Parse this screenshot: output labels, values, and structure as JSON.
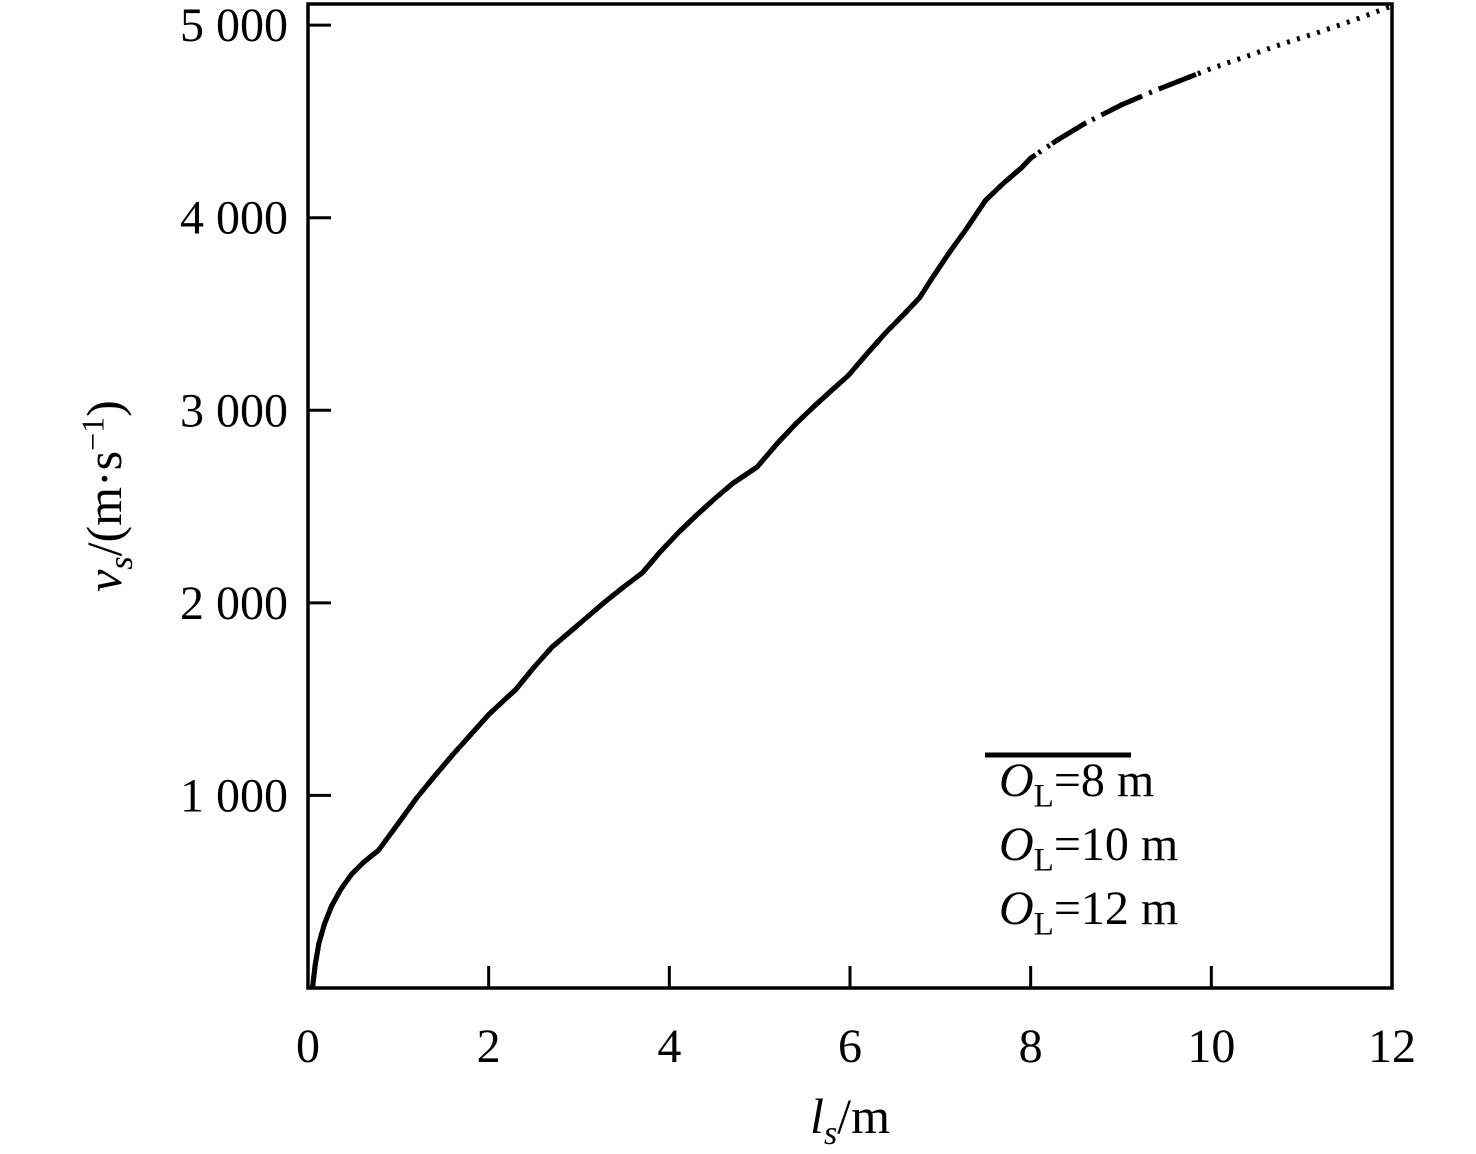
{
  "figure": {
    "background": "#ffffff",
    "ink_color": "#000000",
    "title": ""
  },
  "chart_data": {
    "type": "line",
    "title": "",
    "xlabel": "l_s/m",
    "ylabel": "v_s/(m·s⁻¹)",
    "xlabel_parts": [
      {
        "t": "l",
        "var": true
      },
      {
        "t": "s",
        "sub": true,
        "italic": true
      },
      {
        "t": "/m"
      }
    ],
    "ylabel_parts": [
      {
        "t": "v",
        "var": true
      },
      {
        "t": "s",
        "sub": true,
        "italic": true
      },
      {
        "t": "/(m·s"
      },
      {
        "t": "−1",
        "sup": true
      },
      {
        "t": ")"
      }
    ],
    "xlim": [
      0,
      12
    ],
    "ylim": [
      0,
      5110
    ],
    "grid": false,
    "xticks": [
      {
        "v": 0,
        "label": "0"
      },
      {
        "v": 2,
        "label": "2"
      },
      {
        "v": 4,
        "label": "4"
      },
      {
        "v": 6,
        "label": "6"
      },
      {
        "v": 8,
        "label": "8"
      },
      {
        "v": 10,
        "label": "10"
      },
      {
        "v": 12,
        "label": "12"
      }
    ],
    "yticks": [
      {
        "v": 1000,
        "label": "1 000"
      },
      {
        "v": 2000,
        "label": "2 000"
      },
      {
        "v": 3000,
        "label": "3 000"
      },
      {
        "v": 4000,
        "label": "4 000"
      },
      {
        "v": 5000,
        "label": "5 000"
      }
    ],
    "legend": {
      "position": "lower right",
      "entries": [
        {
          "label": "O_L=8 m",
          "style": "solid"
        },
        {
          "label": "O_L=10 m",
          "style": "dashed"
        },
        {
          "label": "O_L=12 m",
          "style": "dotted"
        }
      ]
    },
    "series": [
      {
        "name": "O_L=8 m",
        "slug": "ol-8-m",
        "style": "solid",
        "label_parts": [
          {
            "t": "O",
            "var": true
          },
          {
            "t": "L",
            "sub": true
          },
          {
            "t": "=8 m"
          }
        ],
        "points": [
          [
            0.05,
            0
          ],
          [
            0.08,
            120
          ],
          [
            0.12,
            230
          ],
          [
            0.18,
            330
          ],
          [
            0.26,
            425
          ],
          [
            0.36,
            510
          ],
          [
            0.48,
            590
          ],
          [
            0.62,
            655
          ],
          [
            0.78,
            715
          ],
          [
            1.0,
            855
          ],
          [
            1.2,
            985
          ],
          [
            1.4,
            1100
          ],
          [
            1.6,
            1210
          ],
          [
            1.8,
            1315
          ],
          [
            2.0,
            1420
          ],
          [
            2.15,
            1485
          ],
          [
            2.3,
            1550
          ],
          [
            2.5,
            1665
          ],
          [
            2.7,
            1770
          ],
          [
            2.9,
            1850
          ],
          [
            3.1,
            1930
          ],
          [
            3.3,
            2010
          ],
          [
            3.5,
            2085
          ],
          [
            3.7,
            2155
          ],
          [
            3.9,
            2265
          ],
          [
            4.1,
            2365
          ],
          [
            4.3,
            2455
          ],
          [
            4.5,
            2540
          ],
          [
            4.7,
            2620
          ],
          [
            4.97,
            2705
          ],
          [
            5.2,
            2830
          ],
          [
            5.4,
            2930
          ],
          [
            5.6,
            3020
          ],
          [
            5.8,
            3105
          ],
          [
            5.98,
            3180
          ],
          [
            6.2,
            3300
          ],
          [
            6.4,
            3405
          ],
          [
            6.6,
            3500
          ],
          [
            6.77,
            3585
          ],
          [
            6.9,
            3680
          ],
          [
            7.1,
            3820
          ],
          [
            7.3,
            3950
          ],
          [
            7.5,
            4090
          ],
          [
            7.7,
            4180
          ],
          [
            7.9,
            4260
          ],
          [
            8.0,
            4310
          ]
        ]
      },
      {
        "name": "O_L=10 m",
        "slug": "ol-10-m",
        "style": "dashed",
        "label_parts": [
          {
            "t": "O",
            "var": true
          },
          {
            "t": "L",
            "sub": true
          },
          {
            "t": "=10 m"
          }
        ],
        "points": [
          [
            0.05,
            0
          ],
          [
            0.08,
            120
          ],
          [
            0.12,
            230
          ],
          [
            0.18,
            330
          ],
          [
            0.26,
            425
          ],
          [
            0.36,
            510
          ],
          [
            0.48,
            590
          ],
          [
            0.62,
            655
          ],
          [
            0.78,
            715
          ],
          [
            1.0,
            855
          ],
          [
            1.2,
            985
          ],
          [
            1.4,
            1100
          ],
          [
            1.6,
            1210
          ],
          [
            1.8,
            1315
          ],
          [
            2.0,
            1420
          ],
          [
            2.15,
            1485
          ],
          [
            2.3,
            1550
          ],
          [
            2.5,
            1665
          ],
          [
            2.7,
            1770
          ],
          [
            2.9,
            1850
          ],
          [
            3.1,
            1930
          ],
          [
            3.3,
            2010
          ],
          [
            3.5,
            2085
          ],
          [
            3.7,
            2155
          ],
          [
            3.9,
            2265
          ],
          [
            4.1,
            2365
          ],
          [
            4.3,
            2455
          ],
          [
            4.5,
            2540
          ],
          [
            4.7,
            2620
          ],
          [
            4.97,
            2705
          ],
          [
            5.2,
            2830
          ],
          [
            5.4,
            2930
          ],
          [
            5.6,
            3020
          ],
          [
            5.8,
            3105
          ],
          [
            5.98,
            3180
          ],
          [
            6.2,
            3300
          ],
          [
            6.4,
            3405
          ],
          [
            6.6,
            3500
          ],
          [
            6.77,
            3585
          ],
          [
            6.9,
            3680
          ],
          [
            7.1,
            3820
          ],
          [
            7.3,
            3950
          ],
          [
            7.5,
            4090
          ],
          [
            7.7,
            4180
          ],
          [
            7.9,
            4260
          ],
          [
            8.0,
            4310
          ],
          [
            8.3,
            4405
          ],
          [
            8.6,
            4490
          ],
          [
            9.0,
            4585
          ],
          [
            9.4,
            4665
          ],
          [
            9.7,
            4720
          ],
          [
            10.0,
            4775
          ]
        ]
      },
      {
        "name": "O_L=12 m",
        "slug": "ol-12-m",
        "style": "dotted",
        "label_parts": [
          {
            "t": "O",
            "var": true
          },
          {
            "t": "L",
            "sub": true
          },
          {
            "t": "=12 m"
          }
        ],
        "points": [
          [
            0.05,
            0
          ],
          [
            0.08,
            120
          ],
          [
            0.12,
            230
          ],
          [
            0.18,
            330
          ],
          [
            0.26,
            425
          ],
          [
            0.36,
            510
          ],
          [
            0.48,
            590
          ],
          [
            0.62,
            655
          ],
          [
            0.78,
            715
          ],
          [
            1.0,
            855
          ],
          [
            1.2,
            985
          ],
          [
            1.4,
            1100
          ],
          [
            1.6,
            1210
          ],
          [
            1.8,
            1315
          ],
          [
            2.0,
            1420
          ],
          [
            2.15,
            1485
          ],
          [
            2.3,
            1550
          ],
          [
            2.5,
            1665
          ],
          [
            2.7,
            1770
          ],
          [
            2.9,
            1850
          ],
          [
            3.1,
            1930
          ],
          [
            3.3,
            2010
          ],
          [
            3.5,
            2085
          ],
          [
            3.7,
            2155
          ],
          [
            3.9,
            2265
          ],
          [
            4.1,
            2365
          ],
          [
            4.3,
            2455
          ],
          [
            4.5,
            2540
          ],
          [
            4.7,
            2620
          ],
          [
            4.97,
            2705
          ],
          [
            5.2,
            2830
          ],
          [
            5.4,
            2930
          ],
          [
            5.6,
            3020
          ],
          [
            5.8,
            3105
          ],
          [
            5.98,
            3180
          ],
          [
            6.2,
            3300
          ],
          [
            6.4,
            3405
          ],
          [
            6.6,
            3500
          ],
          [
            6.77,
            3585
          ],
          [
            6.9,
            3680
          ],
          [
            7.1,
            3820
          ],
          [
            7.3,
            3950
          ],
          [
            7.5,
            4090
          ],
          [
            7.7,
            4180
          ],
          [
            7.9,
            4260
          ],
          [
            8.0,
            4310
          ],
          [
            8.3,
            4405
          ],
          [
            8.6,
            4490
          ],
          [
            9.0,
            4585
          ],
          [
            9.4,
            4665
          ],
          [
            9.7,
            4720
          ],
          [
            10.0,
            4775
          ],
          [
            10.4,
            4840
          ],
          [
            10.8,
            4905
          ],
          [
            11.2,
            4965
          ],
          [
            11.6,
            5030
          ],
          [
            12.0,
            5100
          ]
        ]
      }
    ]
  }
}
